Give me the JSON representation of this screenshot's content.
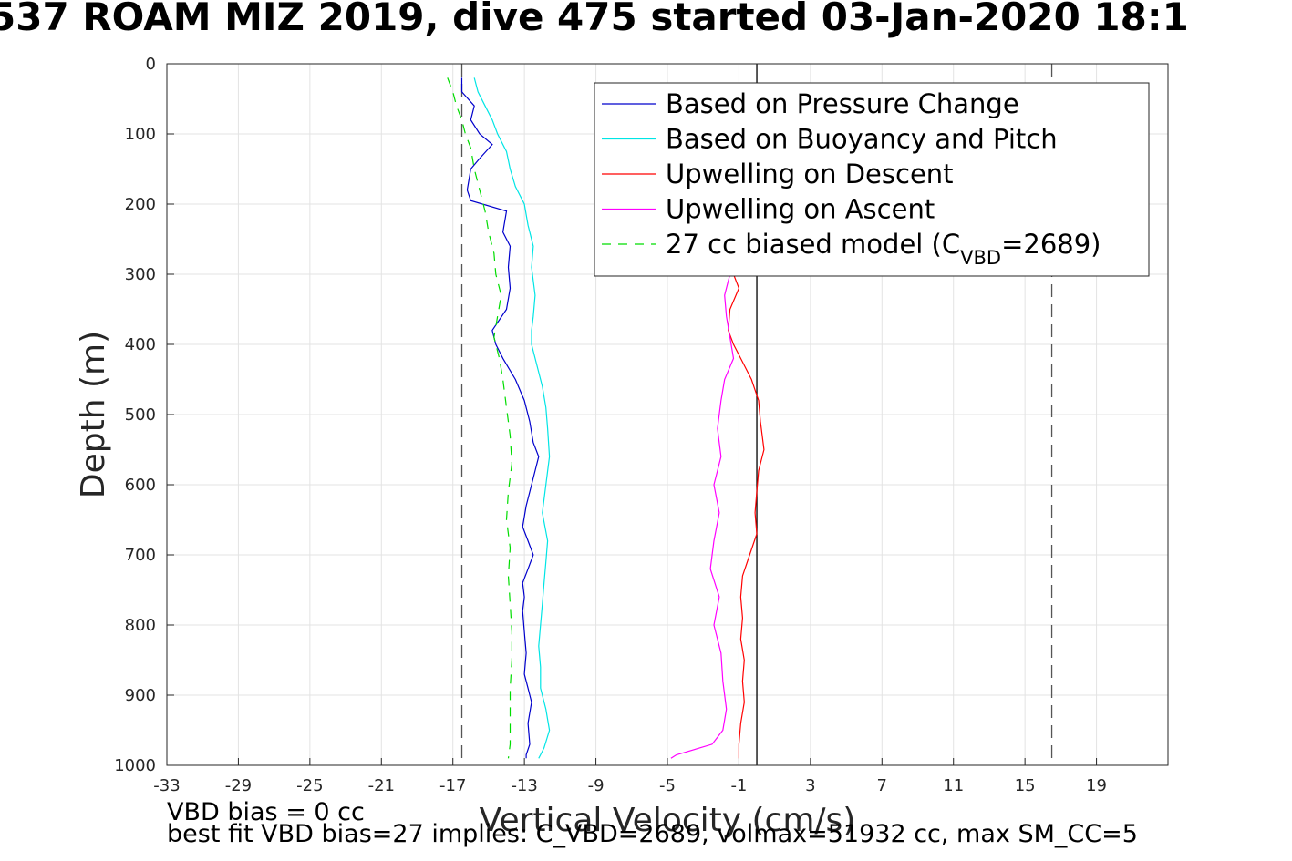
{
  "title": "537 ROAM MIZ 2019, dive 475 started 03-Jan-2020 18:1",
  "footer": {
    "line1": "VBD bias = 0 cc",
    "line2": "best fit VBD bias=27 implies: C_VBD=2689, volmax=51932 cc, max SM_CC=5"
  },
  "chart_data": {
    "type": "line",
    "title": "537 ROAM MIZ 2019, dive 475 started 03-Jan-2020 18:1",
    "xlabel": "Vertical Velocity (cm/s)",
    "ylabel": "Depth (m)",
    "xlim": [
      -33,
      23
    ],
    "ylim": [
      0,
      1000
    ],
    "y_reversed": true,
    "xticks": [
      -33,
      -29,
      -25,
      -21,
      -17,
      -13,
      -9,
      -5,
      -1,
      3,
      7,
      11,
      15,
      19
    ],
    "yticks": [
      0,
      100,
      200,
      300,
      400,
      500,
      600,
      700,
      800,
      900,
      1000
    ],
    "grid": true,
    "legend_position": "top-right",
    "reference_lines": [
      {
        "x": -16.5,
        "style": "dashed",
        "color": "#555555"
      },
      {
        "x": 0,
        "style": "solid",
        "color": "#000000"
      },
      {
        "x": 16.5,
        "style": "dashed",
        "color": "#555555"
      }
    ],
    "series": [
      {
        "name": "Based on Pressure Change",
        "color": "#0000cc",
        "dash": "",
        "points": [
          [
            -16.5,
            20
          ],
          [
            -16.5,
            40
          ],
          [
            -15.8,
            60
          ],
          [
            -16,
            80
          ],
          [
            -15.5,
            100
          ],
          [
            -14.8,
            115
          ],
          [
            -15.5,
            135
          ],
          [
            -16,
            150
          ],
          [
            -16.2,
            180
          ],
          [
            -16,
            195
          ],
          [
            -14,
            210
          ],
          [
            -14.2,
            240
          ],
          [
            -13.8,
            260
          ],
          [
            -13.9,
            290
          ],
          [
            -13.8,
            320
          ],
          [
            -14,
            350
          ],
          [
            -14.8,
            380
          ],
          [
            -14.6,
            400
          ],
          [
            -14.2,
            420
          ],
          [
            -13.5,
            450
          ],
          [
            -13.0,
            480
          ],
          [
            -12.7,
            510
          ],
          [
            -12.5,
            540
          ],
          [
            -12.2,
            560
          ],
          [
            -12.4,
            580
          ],
          [
            -12.6,
            600
          ],
          [
            -12.9,
            630
          ],
          [
            -13.1,
            660
          ],
          [
            -12.8,
            680
          ],
          [
            -12.5,
            700
          ],
          [
            -12.8,
            720
          ],
          [
            -13.1,
            740
          ],
          [
            -13.0,
            760
          ],
          [
            -13.1,
            780
          ],
          [
            -13.0,
            810
          ],
          [
            -12.9,
            840
          ],
          [
            -13.0,
            870
          ],
          [
            -12.8,
            890
          ],
          [
            -12.6,
            910
          ],
          [
            -12.8,
            940
          ],
          [
            -12.7,
            970
          ],
          [
            -12.9,
            985
          ],
          [
            -12.9,
            990
          ]
        ]
      },
      {
        "name": "Based on Buoyancy and Pitch",
        "color": "#00e5e5",
        "dash": "",
        "points": [
          [
            -15.8,
            20
          ],
          [
            -15.6,
            40
          ],
          [
            -15.2,
            60
          ],
          [
            -14.8,
            80
          ],
          [
            -14.5,
            100
          ],
          [
            -14.0,
            125
          ],
          [
            -13.8,
            150
          ],
          [
            -13.5,
            175
          ],
          [
            -13.0,
            200
          ],
          [
            -12.8,
            230
          ],
          [
            -12.5,
            260
          ],
          [
            -12.6,
            290
          ],
          [
            -12.4,
            330
          ],
          [
            -12.5,
            360
          ],
          [
            -12.6,
            380
          ],
          [
            -12.6,
            400
          ],
          [
            -12.3,
            430
          ],
          [
            -12.0,
            460
          ],
          [
            -11.8,
            490
          ],
          [
            -11.7,
            520
          ],
          [
            -11.6,
            560
          ],
          [
            -11.8,
            600
          ],
          [
            -12.0,
            640
          ],
          [
            -11.7,
            680
          ],
          [
            -11.8,
            710
          ],
          [
            -11.9,
            740
          ],
          [
            -12.0,
            770
          ],
          [
            -12.1,
            800
          ],
          [
            -12.2,
            830
          ],
          [
            -12.1,
            860
          ],
          [
            -12.1,
            890
          ],
          [
            -11.8,
            920
          ],
          [
            -11.6,
            950
          ],
          [
            -11.9,
            975
          ],
          [
            -12.1,
            985
          ],
          [
            -12.2,
            990
          ]
        ]
      },
      {
        "name": "Upwelling on Descent",
        "color": "#ff0000",
        "dash": "",
        "points": [
          [
            -1.3,
            300
          ],
          [
            -1.0,
            320
          ],
          [
            -1.5,
            350
          ],
          [
            -1.6,
            380
          ],
          [
            -1.3,
            400
          ],
          [
            -0.9,
            420
          ],
          [
            -0.3,
            450
          ],
          [
            0.1,
            480
          ],
          [
            0.2,
            510
          ],
          [
            0.4,
            550
          ],
          [
            0.1,
            580
          ],
          [
            0.0,
            610
          ],
          [
            -0.1,
            640
          ],
          [
            0.0,
            670
          ],
          [
            -0.4,
            700
          ],
          [
            -0.8,
            730
          ],
          [
            -0.9,
            760
          ],
          [
            -0.8,
            790
          ],
          [
            -0.9,
            820
          ],
          [
            -0.7,
            850
          ],
          [
            -0.8,
            880
          ],
          [
            -0.7,
            910
          ],
          [
            -0.9,
            940
          ],
          [
            -1.0,
            970
          ],
          [
            -1.0,
            990
          ]
        ]
      },
      {
        "name": "Upwelling on Ascent",
        "color": "#ff00ff",
        "dash": "",
        "points": [
          [
            -1.5,
            300
          ],
          [
            -1.8,
            330
          ],
          [
            -1.7,
            360
          ],
          [
            -1.5,
            390
          ],
          [
            -1.3,
            420
          ],
          [
            -1.8,
            450
          ],
          [
            -2.0,
            480
          ],
          [
            -2.2,
            520
          ],
          [
            -2.0,
            560
          ],
          [
            -2.4,
            600
          ],
          [
            -2.1,
            640
          ],
          [
            -2.4,
            680
          ],
          [
            -2.6,
            720
          ],
          [
            -2.1,
            760
          ],
          [
            -2.4,
            800
          ],
          [
            -2.0,
            840
          ],
          [
            -1.9,
            880
          ],
          [
            -1.7,
            920
          ],
          [
            -1.9,
            950
          ],
          [
            -2.5,
            970
          ],
          [
            -4.5,
            985
          ],
          [
            -4.8,
            990
          ]
        ]
      },
      {
        "name": "27 cc biased model (C_VBD=2689)",
        "label_main": "27 cc biased model (C",
        "label_sub": "VBD",
        "label_tail": "=2689)",
        "color": "#00dd00",
        "dash": "10,8",
        "points": [
          [
            -17.3,
            20
          ],
          [
            -17.0,
            40
          ],
          [
            -16.8,
            60
          ],
          [
            -16.5,
            80
          ],
          [
            -16.3,
            100
          ],
          [
            -16.0,
            120
          ],
          [
            -15.8,
            150
          ],
          [
            -15.5,
            180
          ],
          [
            -15.2,
            210
          ],
          [
            -15.0,
            240
          ],
          [
            -14.7,
            270
          ],
          [
            -14.6,
            300
          ],
          [
            -14.3,
            330
          ],
          [
            -14.5,
            360
          ],
          [
            -14.7,
            390
          ],
          [
            -14.4,
            420
          ],
          [
            -14.2,
            450
          ],
          [
            -14.0,
            490
          ],
          [
            -13.8,
            530
          ],
          [
            -13.7,
            570
          ],
          [
            -13.9,
            610
          ],
          [
            -14.0,
            650
          ],
          [
            -13.8,
            690
          ],
          [
            -13.9,
            730
          ],
          [
            -13.8,
            770
          ],
          [
            -13.7,
            810
          ],
          [
            -13.7,
            850
          ],
          [
            -13.8,
            890
          ],
          [
            -13.8,
            930
          ],
          [
            -13.8,
            970
          ],
          [
            -13.9,
            990
          ]
        ]
      }
    ]
  }
}
